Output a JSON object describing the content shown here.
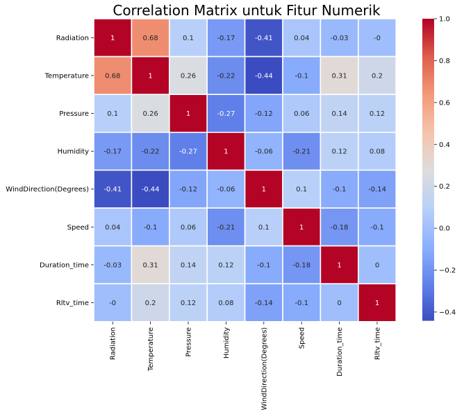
{
  "chart_data": {
    "type": "heatmap",
    "title": "Correlation Matrix untuk Fitur Numerik",
    "xlabel": "",
    "ylabel": "",
    "x_categories": [
      "Radiation",
      "Temperature",
      "Pressure",
      "Humidity",
      "WindDirection(Degrees)",
      "Speed",
      "Duration_time",
      "Rltv_time"
    ],
    "y_categories": [
      "Radiation",
      "Temperature",
      "Pressure",
      "Humidity",
      "WindDirection(Degrees)",
      "Speed",
      "Duration_time",
      "Rltv_time"
    ],
    "values": [
      [
        1,
        0.68,
        0.1,
        -0.17,
        -0.41,
        0.04,
        -0.03,
        0
      ],
      [
        0.68,
        1,
        0.26,
        -0.22,
        -0.44,
        -0.1,
        0.31,
        0.2
      ],
      [
        0.1,
        0.26,
        1,
        -0.27,
        -0.12,
        0.06,
        0.14,
        0.12
      ],
      [
        -0.17,
        -0.22,
        -0.27,
        1,
        -0.06,
        -0.21,
        0.12,
        0.08
      ],
      [
        -0.41,
        -0.44,
        -0.12,
        -0.06,
        1,
        0.1,
        -0.1,
        -0.14
      ],
      [
        0.04,
        -0.1,
        0.06,
        -0.21,
        0.1,
        1,
        -0.18,
        -0.1
      ],
      [
        -0.03,
        0.31,
        0.14,
        0.12,
        -0.1,
        -0.18,
        1,
        0
      ],
      [
        0,
        0.2,
        0.12,
        0.08,
        -0.14,
        -0.1,
        0,
        1
      ]
    ],
    "value_labels": [
      [
        "1",
        "0.68",
        "0.1",
        "-0.17",
        "-0.41",
        "0.04",
        "-0.03",
        "-0"
      ],
      [
        "0.68",
        "1",
        "0.26",
        "-0.22",
        "-0.44",
        "-0.1",
        "0.31",
        "0.2"
      ],
      [
        "0.1",
        "0.26",
        "1",
        "-0.27",
        "-0.12",
        "0.06",
        "0.14",
        "0.12"
      ],
      [
        "-0.17",
        "-0.22",
        "-0.27",
        "1",
        "-0.06",
        "-0.21",
        "0.12",
        "0.08"
      ],
      [
        "-0.41",
        "-0.44",
        "-0.12",
        "-0.06",
        "1",
        "0.1",
        "-0.1",
        "-0.14"
      ],
      [
        "0.04",
        "-0.1",
        "0.06",
        "-0.21",
        "0.1",
        "1",
        "-0.18",
        "-0.1"
      ],
      [
        "-0.03",
        "0.31",
        "0.14",
        "0.12",
        "-0.1",
        "-0.18",
        "1",
        "0"
      ],
      [
        "-0",
        "0.2",
        "0.12",
        "0.08",
        "-0.14",
        "-0.1",
        "0",
        "1"
      ]
    ],
    "colormap": "coolwarm",
    "vmin": -0.44,
    "vmax": 1.0,
    "colorbar_ticks": [
      1.0,
      0.8,
      0.6,
      0.4,
      0.2,
      0.0,
      -0.2,
      -0.4
    ],
    "colorbar_tick_labels": [
      "1.0",
      "0.8",
      "0.6",
      "0.4",
      "0.2",
      "0.0",
      "−0.2",
      "−0.4"
    ],
    "grid": true,
    "cell_separator_color": "#ffffff"
  }
}
